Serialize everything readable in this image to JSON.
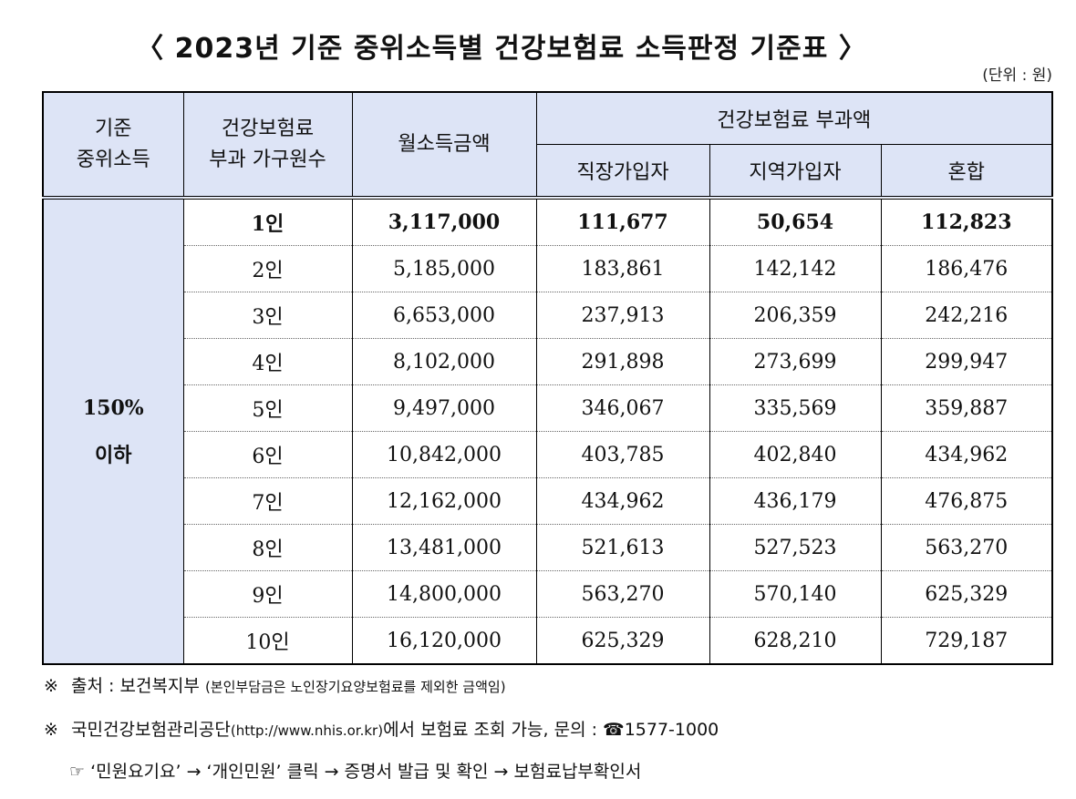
{
  "title": "〈 2023년 기준 중위소득별 건강보험료 소득판정 기준표 〉",
  "unit": "(단위 : 원)",
  "table": {
    "headers": {
      "col1": "기준\n중위소득",
      "col2": "건강보험료\n부과 가구원수",
      "col3": "월소득금액",
      "group": "건강보험료 부과액",
      "sub1": "직장가입자",
      "sub2": "지역가입자",
      "sub3": "혼합"
    },
    "group_label": "150%\n이하",
    "rows": [
      [
        "1인",
        "3,117,000",
        "111,677",
        "50,654",
        "112,823"
      ],
      [
        "2인",
        "5,185,000",
        "183,861",
        "142,142",
        "186,476"
      ],
      [
        "3인",
        "6,653,000",
        "237,913",
        "206,359",
        "242,216"
      ],
      [
        "4인",
        "8,102,000",
        "291,898",
        "273,699",
        "299,947"
      ],
      [
        "5인",
        "9,497,000",
        "346,067",
        "335,569",
        "359,887"
      ],
      [
        "6인",
        "10,842,000",
        "403,785",
        "402,840",
        "434,962"
      ],
      [
        "7인",
        "12,162,000",
        "434,962",
        "436,179",
        "476,875"
      ],
      [
        "8인",
        "13,481,000",
        "521,613",
        "527,523",
        "563,270"
      ],
      [
        "9인",
        "14,800,000",
        "563,270",
        "570,140",
        "625,329"
      ],
      [
        "10인",
        "16,120,000",
        "625,329",
        "628,210",
        "729,187"
      ]
    ],
    "header_bg": "#dde4f6"
  },
  "notes": {
    "note1_mark": "※",
    "note1_text": "출처 : 보건복지부",
    "note1_small": "(본인부담금은 노인장기요양보험료를 제외한 금액임)",
    "note2_mark": "※",
    "note2_text_a": "국민건강보험관리공단",
    "note2_small": "(http://www.nhis.or.kr)",
    "note2_text_b": "에서 보험료 조회 가능, 문의 : ☎1577-1000",
    "note3_text": "☞ ‘민원요기요’ → ‘개인민원’ 클릭 → 증명서 발급 및 확인 → 보험료납부확인서"
  }
}
